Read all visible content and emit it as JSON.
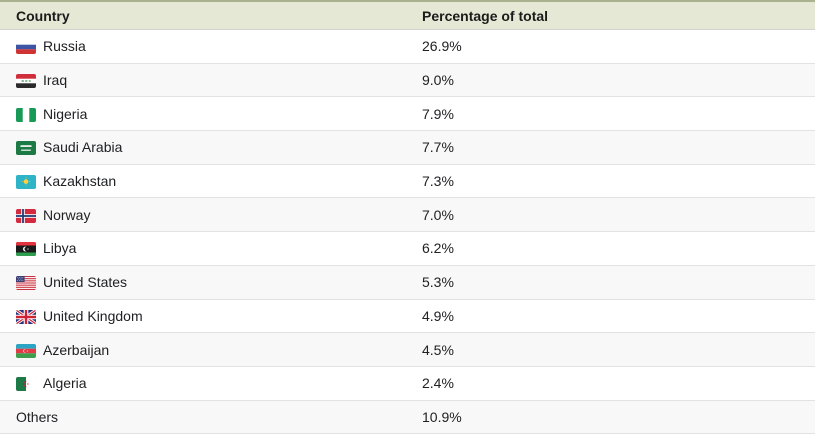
{
  "chart_data": {
    "type": "table",
    "columns": [
      "Country",
      "Percentage of total"
    ],
    "rows": [
      {
        "country": "Russia",
        "flag": "russia",
        "value": "26.9%"
      },
      {
        "country": "Iraq",
        "flag": "iraq",
        "value": "9.0%"
      },
      {
        "country": "Nigeria",
        "flag": "nigeria",
        "value": "7.9%"
      },
      {
        "country": "Saudi Arabia",
        "flag": "saudi-arabia",
        "value": "7.7%"
      },
      {
        "country": "Kazakhstan",
        "flag": "kazakhstan",
        "value": "7.3%"
      },
      {
        "country": "Norway",
        "flag": "norway",
        "value": "7.0%"
      },
      {
        "country": "Libya",
        "flag": "libya",
        "value": "6.2%"
      },
      {
        "country": "United States",
        "flag": "united-states",
        "value": "5.3%"
      },
      {
        "country": "United Kingdom",
        "flag": "united-kingdom",
        "value": "4.9%"
      },
      {
        "country": "Azerbaijan",
        "flag": "azerbaijan",
        "value": "4.5%"
      },
      {
        "country": "Algeria",
        "flag": "algeria",
        "value": "2.4%"
      },
      {
        "country": "Others",
        "flag": null,
        "value": "10.9%"
      }
    ]
  },
  "colors": {
    "header_bg": "#e4e8d4",
    "header_top_border": "#a9b18f",
    "header_bottom_border": "#d2d2d2",
    "row_alt_bg": "#f8f8f8",
    "row_border": "#e2e2e2",
    "text": "#202124"
  }
}
